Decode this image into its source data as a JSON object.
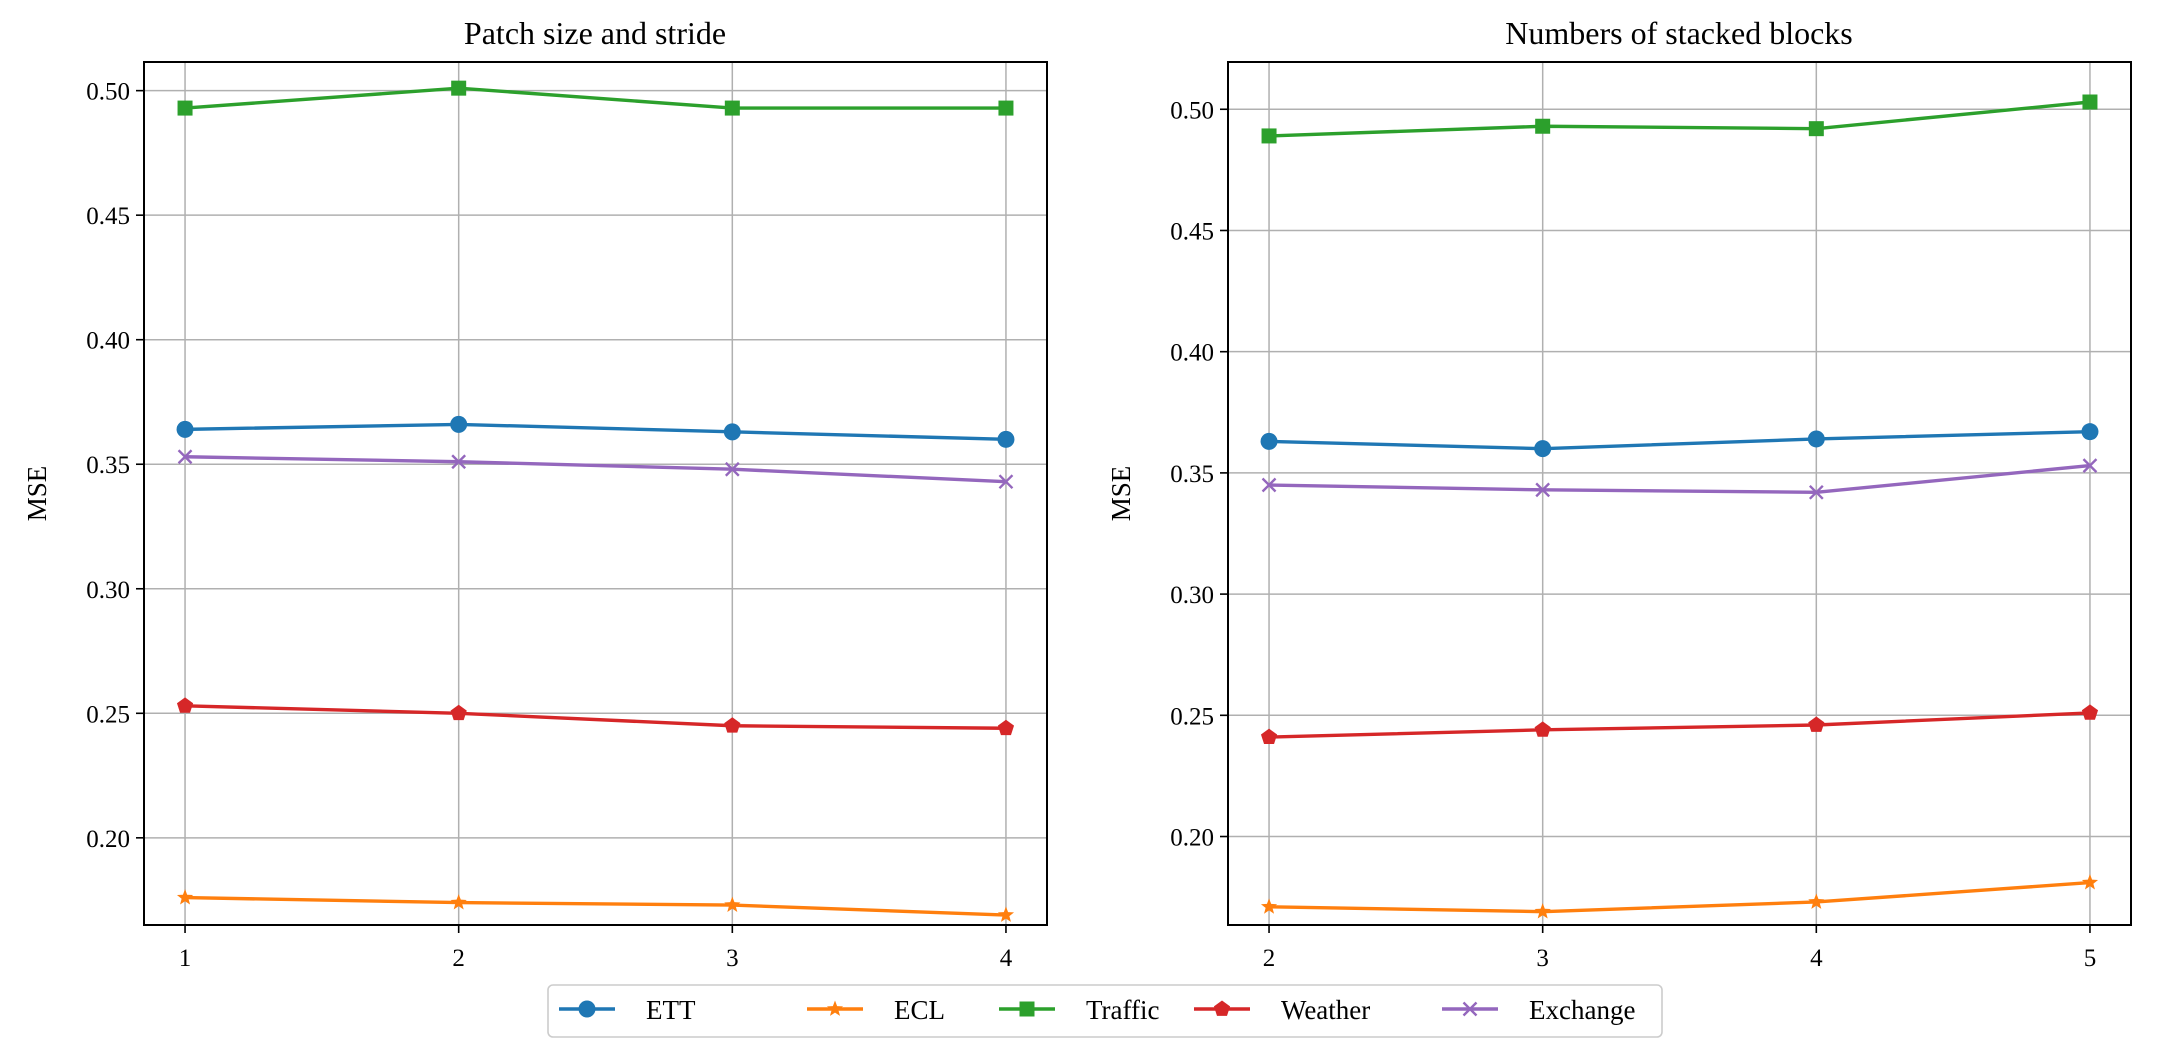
{
  "chart_data": [
    {
      "type": "line",
      "title": "Patch size and stride",
      "xlabel": "",
      "ylabel": "MSE",
      "x": [
        1,
        2,
        3,
        4
      ],
      "xticks": [
        "1",
        "2",
        "3",
        "4"
      ],
      "xlim": [
        0.85,
        4.15
      ],
      "ylim": [
        0.165,
        0.5115
      ],
      "yticks": [
        0.2,
        0.25,
        0.3,
        0.35,
        0.4,
        0.45,
        0.5
      ],
      "ytick_labels": [
        "0.20",
        "0.25",
        "0.30",
        "0.35",
        "0.40",
        "0.45",
        "0.50"
      ],
      "grid": true,
      "series": [
        {
          "name": "ETT",
          "values": [
            0.364,
            0.366,
            0.363,
            0.36
          ]
        },
        {
          "name": "ECL",
          "values": [
            0.176,
            0.174,
            0.173,
            0.169
          ]
        },
        {
          "name": "Traffic",
          "values": [
            0.493,
            0.501,
            0.493,
            0.493
          ]
        },
        {
          "name": "Weather",
          "values": [
            0.253,
            0.25,
            0.245,
            0.244
          ]
        },
        {
          "name": "Exchange",
          "values": [
            0.353,
            0.351,
            0.348,
            0.343
          ]
        }
      ]
    },
    {
      "type": "line",
      "title": "Numbers of stacked blocks",
      "xlabel": "",
      "ylabel": "MSE",
      "x": [
        2,
        3,
        4,
        5
      ],
      "xticks": [
        "2",
        "3",
        "4",
        "5"
      ],
      "xlim": [
        1.85,
        5.15
      ],
      "ylim": [
        0.1635,
        0.5195
      ],
      "yticks": [
        0.2,
        0.25,
        0.3,
        0.35,
        0.4,
        0.45,
        0.5
      ],
      "ytick_labels": [
        "0.20",
        "0.25",
        "0.30",
        "0.35",
        "0.40",
        "0.45",
        "0.50"
      ],
      "grid": true,
      "series": [
        {
          "name": "ETT",
          "values": [
            0.363,
            0.36,
            0.364,
            0.367
          ]
        },
        {
          "name": "ECL",
          "values": [
            0.171,
            0.169,
            0.173,
            0.181
          ]
        },
        {
          "name": "Traffic",
          "values": [
            0.489,
            0.493,
            0.492,
            0.503
          ]
        },
        {
          "name": "Weather",
          "values": [
            0.241,
            0.244,
            0.246,
            0.251
          ]
        },
        {
          "name": "Exchange",
          "values": [
            0.345,
            0.343,
            0.342,
            0.353
          ]
        }
      ]
    }
  ],
  "legend": {
    "placement": "bottom-center",
    "entries": [
      {
        "name": "ETT",
        "color": "#1f77b4",
        "marker": "circle"
      },
      {
        "name": "ECL",
        "color": "#ff7f0e",
        "marker": "star"
      },
      {
        "name": "Traffic",
        "color": "#2ca02c",
        "marker": "square"
      },
      {
        "name": "Weather",
        "color": "#d62728",
        "marker": "pentagon"
      },
      {
        "name": "Exchange",
        "color": "#9467bd",
        "marker": "x"
      }
    ]
  }
}
